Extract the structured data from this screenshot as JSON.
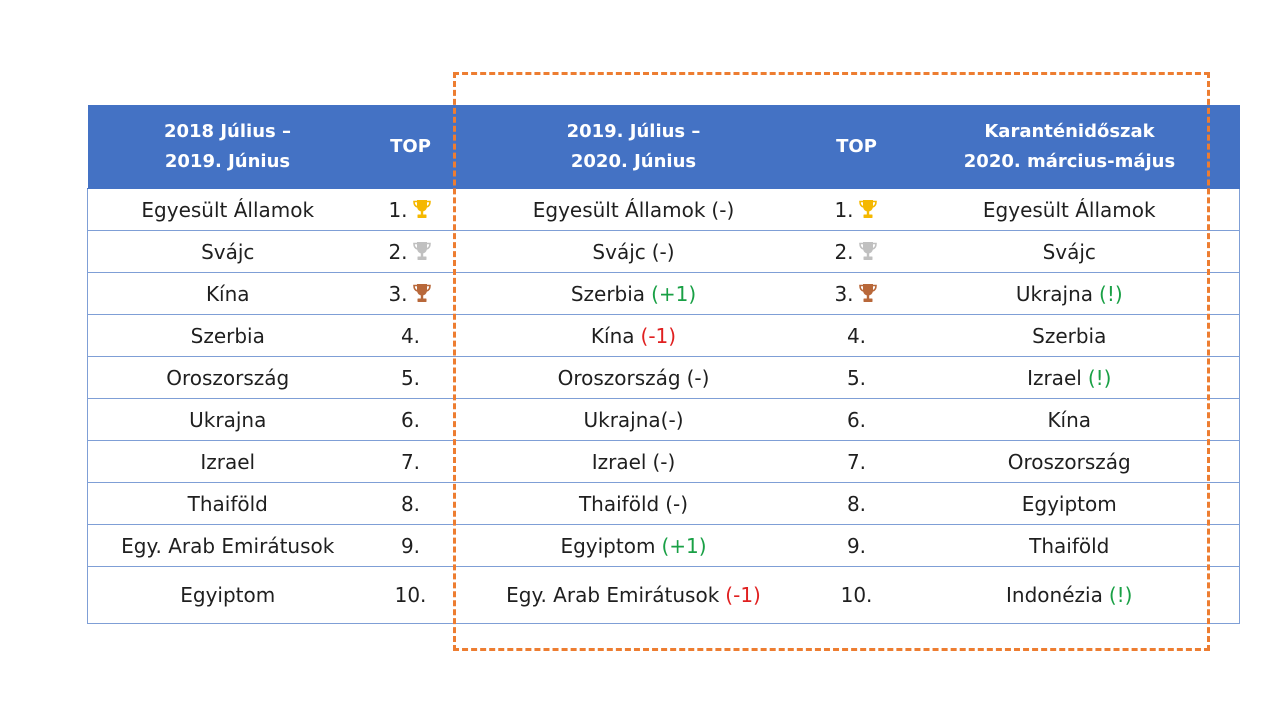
{
  "colors": {
    "header_bg": "#4472c4",
    "header_text": "#ffffff",
    "row_border": "#7f9fd6",
    "highlight_border": "#ed7d31",
    "positive_change": "#19a045",
    "negative_change": "#e02020",
    "gold": "#f5b800",
    "silver": "#c0c0c0",
    "bronze": "#b8683a"
  },
  "header": {
    "period1_line1": "2018 Július –",
    "period1_line2": "2019. Június",
    "top1": "TOP",
    "period2_line1": "2019. Július –",
    "period2_line2": "2020. Június",
    "top2": "TOP",
    "period3_line1": "Karanténidőszak",
    "period3_line2": "2020. március-május"
  },
  "rows": [
    {
      "c1": "Egyesült Államok",
      "r1": "1.",
      "t1": "gold-trophy-icon",
      "c2": "Egyesült Államok",
      "c2_change": "(-)",
      "c2_change_color": "plain",
      "r2": "1.",
      "t2": "gold-trophy-icon",
      "c3": "Egyesült Államok",
      "c3_mark": "",
      "c3_mark_color": "plain"
    },
    {
      "c1": "Svájc",
      "r1": "2.",
      "t1": "silver-trophy-icon",
      "c2": "Svájc",
      "c2_change": "(-)",
      "c2_change_color": "plain",
      "r2": "2.",
      "t2": "silver-trophy-icon",
      "c3": "Svájc",
      "c3_mark": "",
      "c3_mark_color": "plain"
    },
    {
      "c1": "Kína",
      "r1": "3.",
      "t1": "bronze-trophy-icon",
      "c2": "Szerbia",
      "c2_change": "(+1)",
      "c2_change_color": "green",
      "r2": "3.",
      "t2": "bronze-trophy-icon",
      "c3": "Ukrajna",
      "c3_mark": "(!)",
      "c3_mark_color": "green"
    },
    {
      "c1": "Szerbia",
      "r1": "4.",
      "t1": "",
      "c2": "Kína",
      "c2_change": "(-1)",
      "c2_change_color": "red",
      "r2": "4.",
      "t2": "",
      "c3": "Szerbia",
      "c3_mark": "",
      "c3_mark_color": "plain"
    },
    {
      "c1": "Oroszország",
      "r1": "5.",
      "t1": "",
      "c2": "Oroszország",
      "c2_change": "(-)",
      "c2_change_color": "plain",
      "r2": "5.",
      "t2": "",
      "c3": "Izrael",
      "c3_mark": "(!)",
      "c3_mark_color": "green"
    },
    {
      "c1": "Ukrajna",
      "r1": "6.",
      "t1": "",
      "c2": "Ukrajna(-)",
      "c2_change": "",
      "c2_change_color": "plain",
      "r2": "6.",
      "t2": "",
      "c3": "Kína",
      "c3_mark": "",
      "c3_mark_color": "plain"
    },
    {
      "c1": "Izrael",
      "r1": "7.",
      "t1": "",
      "c2": "Izrael",
      "c2_change": "(-)",
      "c2_change_color": "plain",
      "r2": "7.",
      "t2": "",
      "c3": "Oroszország",
      "c3_mark": "",
      "c3_mark_color": "plain"
    },
    {
      "c1": "Thaiföld",
      "r1": "8.",
      "t1": "",
      "c2": "Thaiföld",
      "c2_change": "(-)",
      "c2_change_color": "plain",
      "r2": "8.",
      "t2": "",
      "c3": "Egyiptom",
      "c3_mark": "",
      "c3_mark_color": "plain"
    },
    {
      "c1": "Egy. Arab Emirátusok",
      "r1": "9.",
      "t1": "",
      "c2": "Egyiptom",
      "c2_change": "(+1)",
      "c2_change_color": "green",
      "r2": "9.",
      "t2": "",
      "c3": "Thaiföld",
      "c3_mark": "",
      "c3_mark_color": "plain"
    },
    {
      "c1": "Egyiptom",
      "r1": "10.",
      "t1": "",
      "c2": "Egy. Arab Emirátusok",
      "c2_change": "(-1)",
      "c2_change_color": "red",
      "r2": "10.",
      "t2": "",
      "c3": "Indonézia",
      "c3_mark": "(!)",
      "c3_mark_color": "green"
    }
  ]
}
